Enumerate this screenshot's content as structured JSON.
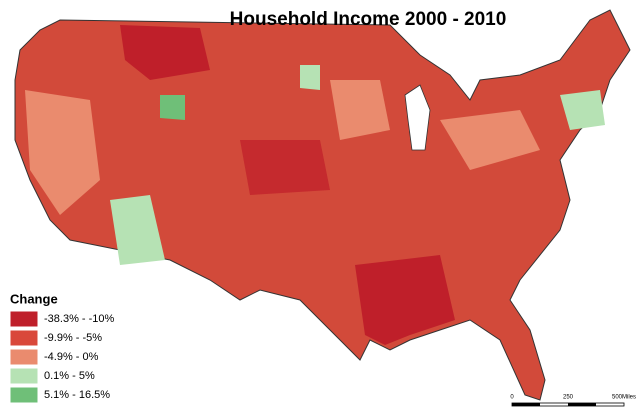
{
  "title": "Household Income 2000 - 2010",
  "legend": {
    "title": "Change",
    "items": [
      {
        "label": "-38.3% - -10%",
        "color": "#bf1f2a"
      },
      {
        "label": "-9.9% - -5%",
        "color": "#d9483a"
      },
      {
        "label": "-4.9% - 0%",
        "color": "#ea8b6e"
      },
      {
        "label": "0.1% - 5%",
        "color": "#b6e2b4"
      },
      {
        "label": "5.1% - 16.5%",
        "color": "#6fbf78"
      }
    ]
  },
  "scale_bar": {
    "labels": [
      "0",
      "250",
      "500Miles"
    ]
  }
}
